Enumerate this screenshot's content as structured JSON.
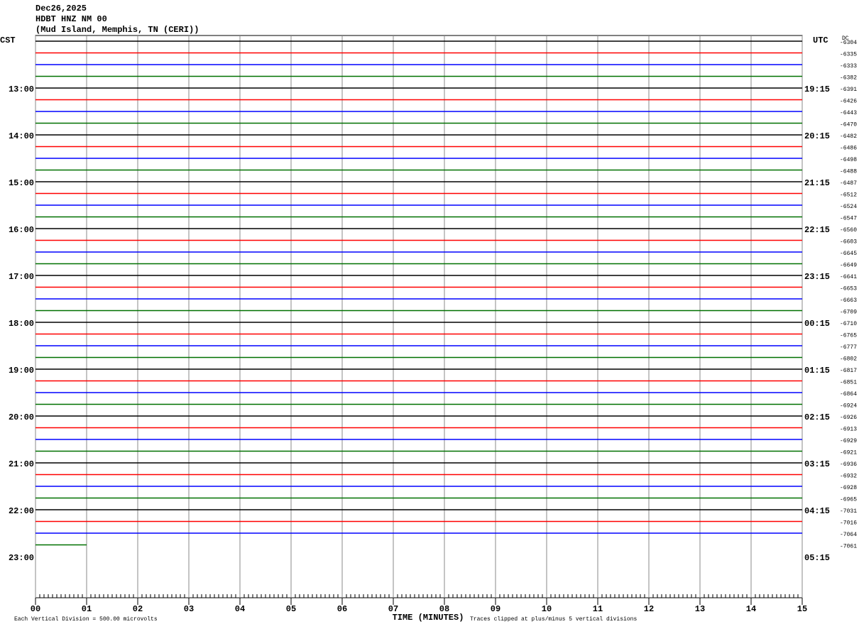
{
  "chart_data": {
    "type": "helicorder",
    "header": [
      "Dec26,2025",
      "HDBT HNZ NM 00",
      "(Mud Island, Memphis, TN (CERI))"
    ],
    "left_zone": "CST",
    "right_zone": "UTC",
    "dc_header": "DC",
    "left_hours": [
      "13:00",
      "14:00",
      "15:00",
      "16:00",
      "17:00",
      "18:00",
      "19:00",
      "20:00",
      "21:00",
      "22:00",
      "23:00"
    ],
    "right_hours": [
      "19:15",
      "20:15",
      "21:15",
      "22:15",
      "23:15",
      "00:15",
      "01:15",
      "02:15",
      "03:15",
      "04:15",
      "05:15"
    ],
    "trace_colors": [
      "#000000",
      "#ff0000",
      "#0000ff",
      "#007000"
    ],
    "traces": {
      "dc": [
        -6304,
        -6335,
        -6333,
        -6382,
        -6391,
        -6426,
        -6443,
        -6470,
        -6482,
        -6486,
        -6498,
        -6488,
        -6487,
        -6512,
        -6524,
        -6547,
        -6560,
        -6603,
        -6645,
        -6649,
        -6641,
        -6653,
        -6663,
        -6709,
        -6710,
        -6765,
        -6777,
        -6802,
        -6817,
        -6851,
        -6864,
        -6924,
        -6926,
        -6913,
        -6929,
        -6921,
        -6936,
        -6932,
        -6928,
        -6965,
        -7031,
        -7016,
        -7064,
        -7061
      ],
      "end": [
        15,
        15,
        15,
        15,
        15,
        15,
        15,
        15,
        15,
        15,
        15,
        15,
        15,
        15,
        15,
        15,
        15,
        15,
        15,
        15,
        15,
        15,
        15,
        15,
        15,
        15,
        15,
        15,
        15,
        15,
        15,
        15,
        15,
        15,
        15,
        15,
        15,
        15,
        15,
        15,
        15,
        15,
        15,
        1
      ]
    },
    "xlim": [
      0,
      15
    ],
    "xticks": [
      {
        "value": 0,
        "label": "00"
      },
      {
        "value": 1,
        "label": "01"
      },
      {
        "value": 2,
        "label": "02"
      },
      {
        "value": 3,
        "label": "03"
      },
      {
        "value": 4,
        "label": "04"
      },
      {
        "value": 5,
        "label": "05"
      },
      {
        "value": 6,
        "label": "06"
      },
      {
        "value": 7,
        "label": "07"
      },
      {
        "value": 8,
        "label": "08"
      },
      {
        "value": 9,
        "label": "09"
      },
      10,
      11,
      12,
      13,
      14,
      15
    ],
    "xlabel": "TIME (MINUTES)",
    "footer_left": "Each Vertical Division =  500.00 microvolts",
    "footer_right": "Traces clipped at plus/minus 5 vertical divisions"
  }
}
